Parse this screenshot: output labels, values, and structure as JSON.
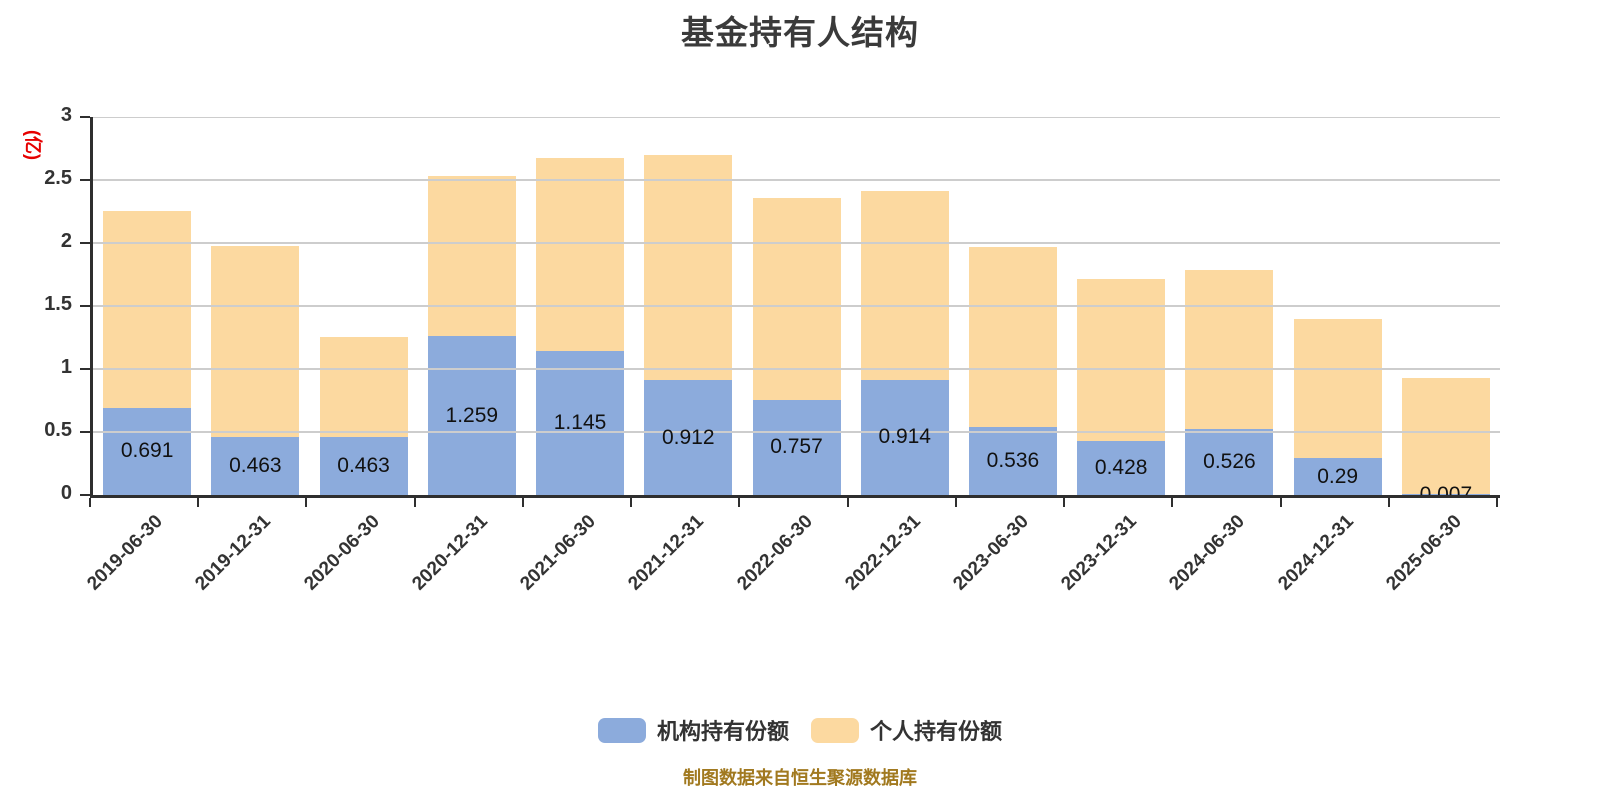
{
  "title": "基金持有人结构",
  "y_axis": {
    "name": "(亿)",
    "name_color": "#e60000",
    "ticks": [
      "0",
      "0.5",
      "1",
      "1.5",
      "2",
      "2.5",
      "3"
    ]
  },
  "footer": "制图数据来自恒生聚源数据库",
  "colors": {
    "institutional": "#8cabdc",
    "individual": "#fcd9a0",
    "axis": "#2f2f2f",
    "grid": "#cdcdcd",
    "title_text": "#3a3a3a",
    "footer_text": "#a1791f",
    "y_name_text": "#e60000"
  },
  "chart_data": {
    "type": "bar",
    "stacked": true,
    "title": "基金持有人结构",
    "ylabel": "(亿)",
    "ylim": [
      0,
      3
    ],
    "ytick_step": 0.5,
    "grid": true,
    "legend_position": "bottom",
    "categories": [
      "2019-06-30",
      "2019-12-31",
      "2020-06-30",
      "2020-12-31",
      "2021-06-30",
      "2021-12-31",
      "2022-06-30",
      "2022-12-31",
      "2023-06-30",
      "2023-12-31",
      "2024-06-30",
      "2024-12-31",
      "2025-06-30"
    ],
    "series": [
      {
        "name": "机构持有份额",
        "color": "#8cabdc",
        "values": [
          0.691,
          0.463,
          0.463,
          1.259,
          1.145,
          0.912,
          0.757,
          0.914,
          0.536,
          0.428,
          0.526,
          0.29,
          0.007
        ],
        "labels": [
          "0.691",
          "0.463",
          "0.463",
          "1.259",
          "1.145",
          "0.912",
          "0.757",
          "0.914",
          "0.536",
          "0.428",
          "0.526",
          "0.29",
          "0.007"
        ]
      },
      {
        "name": "个人持有份额",
        "color": "#fcd9a0",
        "values": [
          1.56,
          1.51,
          0.79,
          1.27,
          1.53,
          1.79,
          1.6,
          1.5,
          1.43,
          1.29,
          1.26,
          1.11,
          0.92
        ]
      }
    ],
    "totals": [
      2.25,
      1.97,
      1.25,
      2.53,
      2.68,
      2.7,
      2.36,
      2.41,
      1.97,
      1.72,
      1.79,
      1.4,
      0.93
    ]
  }
}
